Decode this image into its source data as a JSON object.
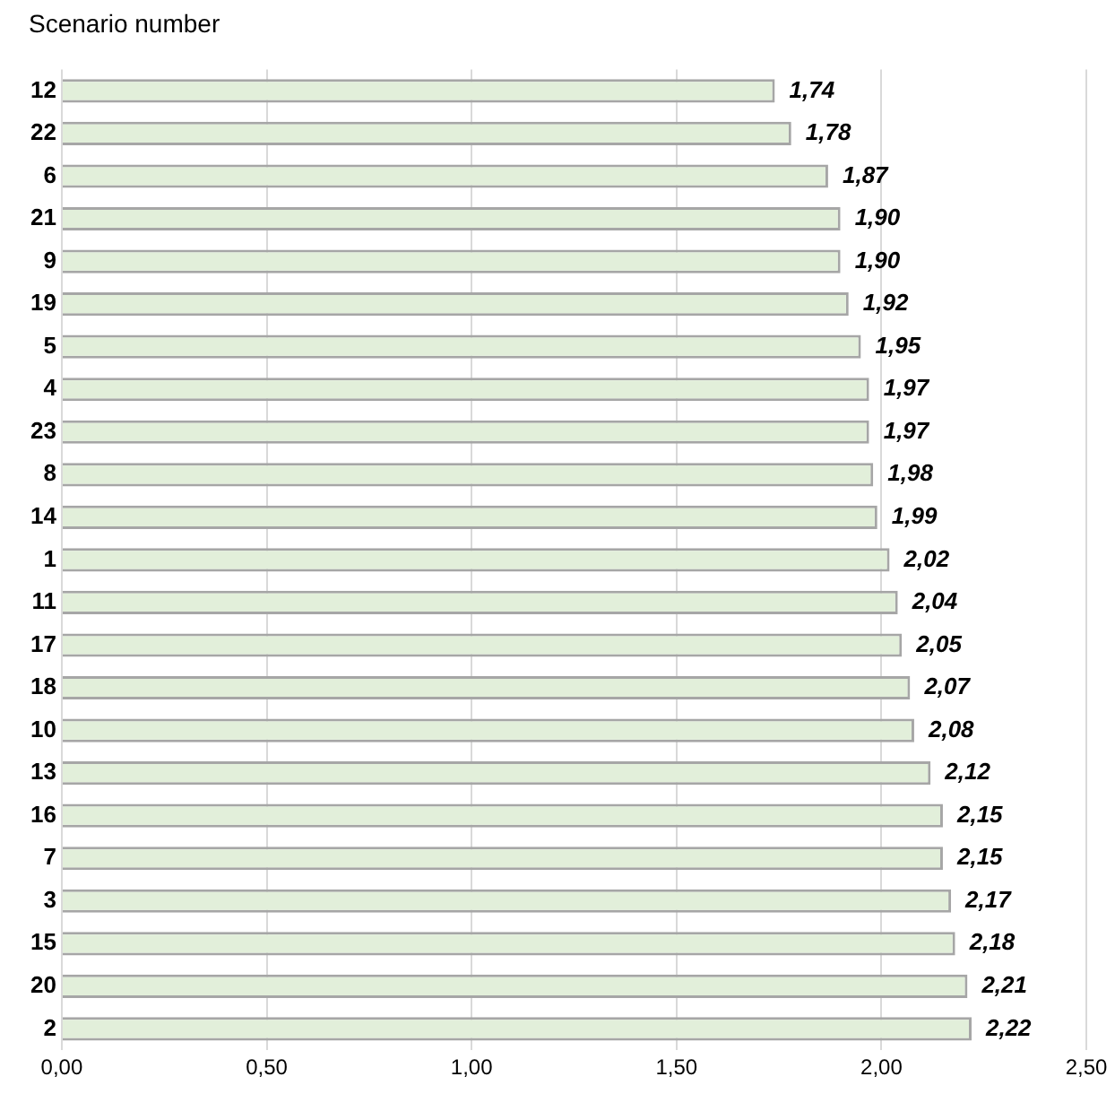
{
  "chart_data": {
    "type": "bar",
    "orientation": "horizontal",
    "ylabel": "Scenario number",
    "categories": [
      "12",
      "22",
      "6",
      "21",
      "9",
      "19",
      "5",
      "4",
      "23",
      "8",
      "14",
      "1",
      "11",
      "17",
      "18",
      "10",
      "13",
      "16",
      "7",
      "3",
      "15",
      "20",
      "2"
    ],
    "values": [
      1.74,
      1.78,
      1.87,
      1.9,
      1.9,
      1.92,
      1.95,
      1.97,
      1.97,
      1.98,
      1.99,
      2.02,
      2.04,
      2.05,
      2.07,
      2.08,
      2.12,
      2.15,
      2.15,
      2.17,
      2.18,
      2.21,
      2.22
    ],
    "value_labels": [
      "1,74",
      "1,78",
      "1,87",
      "1,90",
      "1,90",
      "1,92",
      "1,95",
      "1,97",
      "1,97",
      "1,98",
      "1,99",
      "2,02",
      "2,04",
      "2,05",
      "2,07",
      "2,08",
      "2,12",
      "2,15",
      "2,15",
      "2,17",
      "2,18",
      "2,21",
      "2,22"
    ],
    "color": "#e2efda",
    "xlim": [
      0,
      2.5
    ],
    "xticks": [
      {
        "value": 0,
        "label": "0,00"
      },
      {
        "value": 0.5,
        "label": "0,50"
      },
      {
        "value": 1,
        "label": "1,00"
      },
      {
        "value": 1.5,
        "label": "1,50"
      },
      {
        "value": 2,
        "label": "2,00"
      },
      {
        "value": 2.5,
        "label": "2,50"
      }
    ],
    "grid": "x",
    "legend": false
  }
}
